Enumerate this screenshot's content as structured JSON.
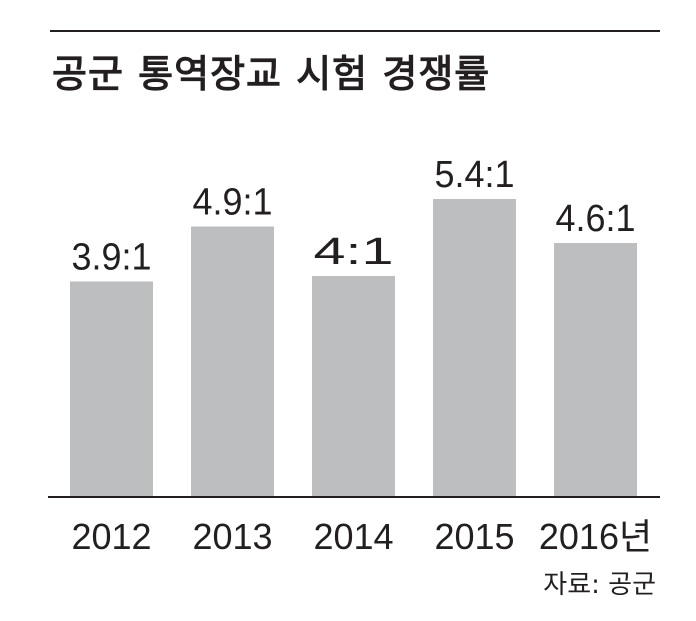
{
  "chart_data": {
    "type": "bar",
    "title": "공군 통역장교 시험 경쟁률",
    "categories": [
      "2012",
      "2013",
      "2014",
      "2015",
      "2016년"
    ],
    "values": [
      3.9,
      4.9,
      4,
      5.4,
      4.6
    ],
    "data_labels": [
      "3.9:1",
      "4.9:1",
      "4:1",
      "5.4:1",
      "4.6:1"
    ],
    "xlabel": "",
    "ylabel": "",
    "ylim": [
      0,
      6.5
    ],
    "grid": false,
    "legend": "none",
    "bar_color": "#bcbec0",
    "text_color": "#231f20"
  },
  "source": "자료: 공군"
}
